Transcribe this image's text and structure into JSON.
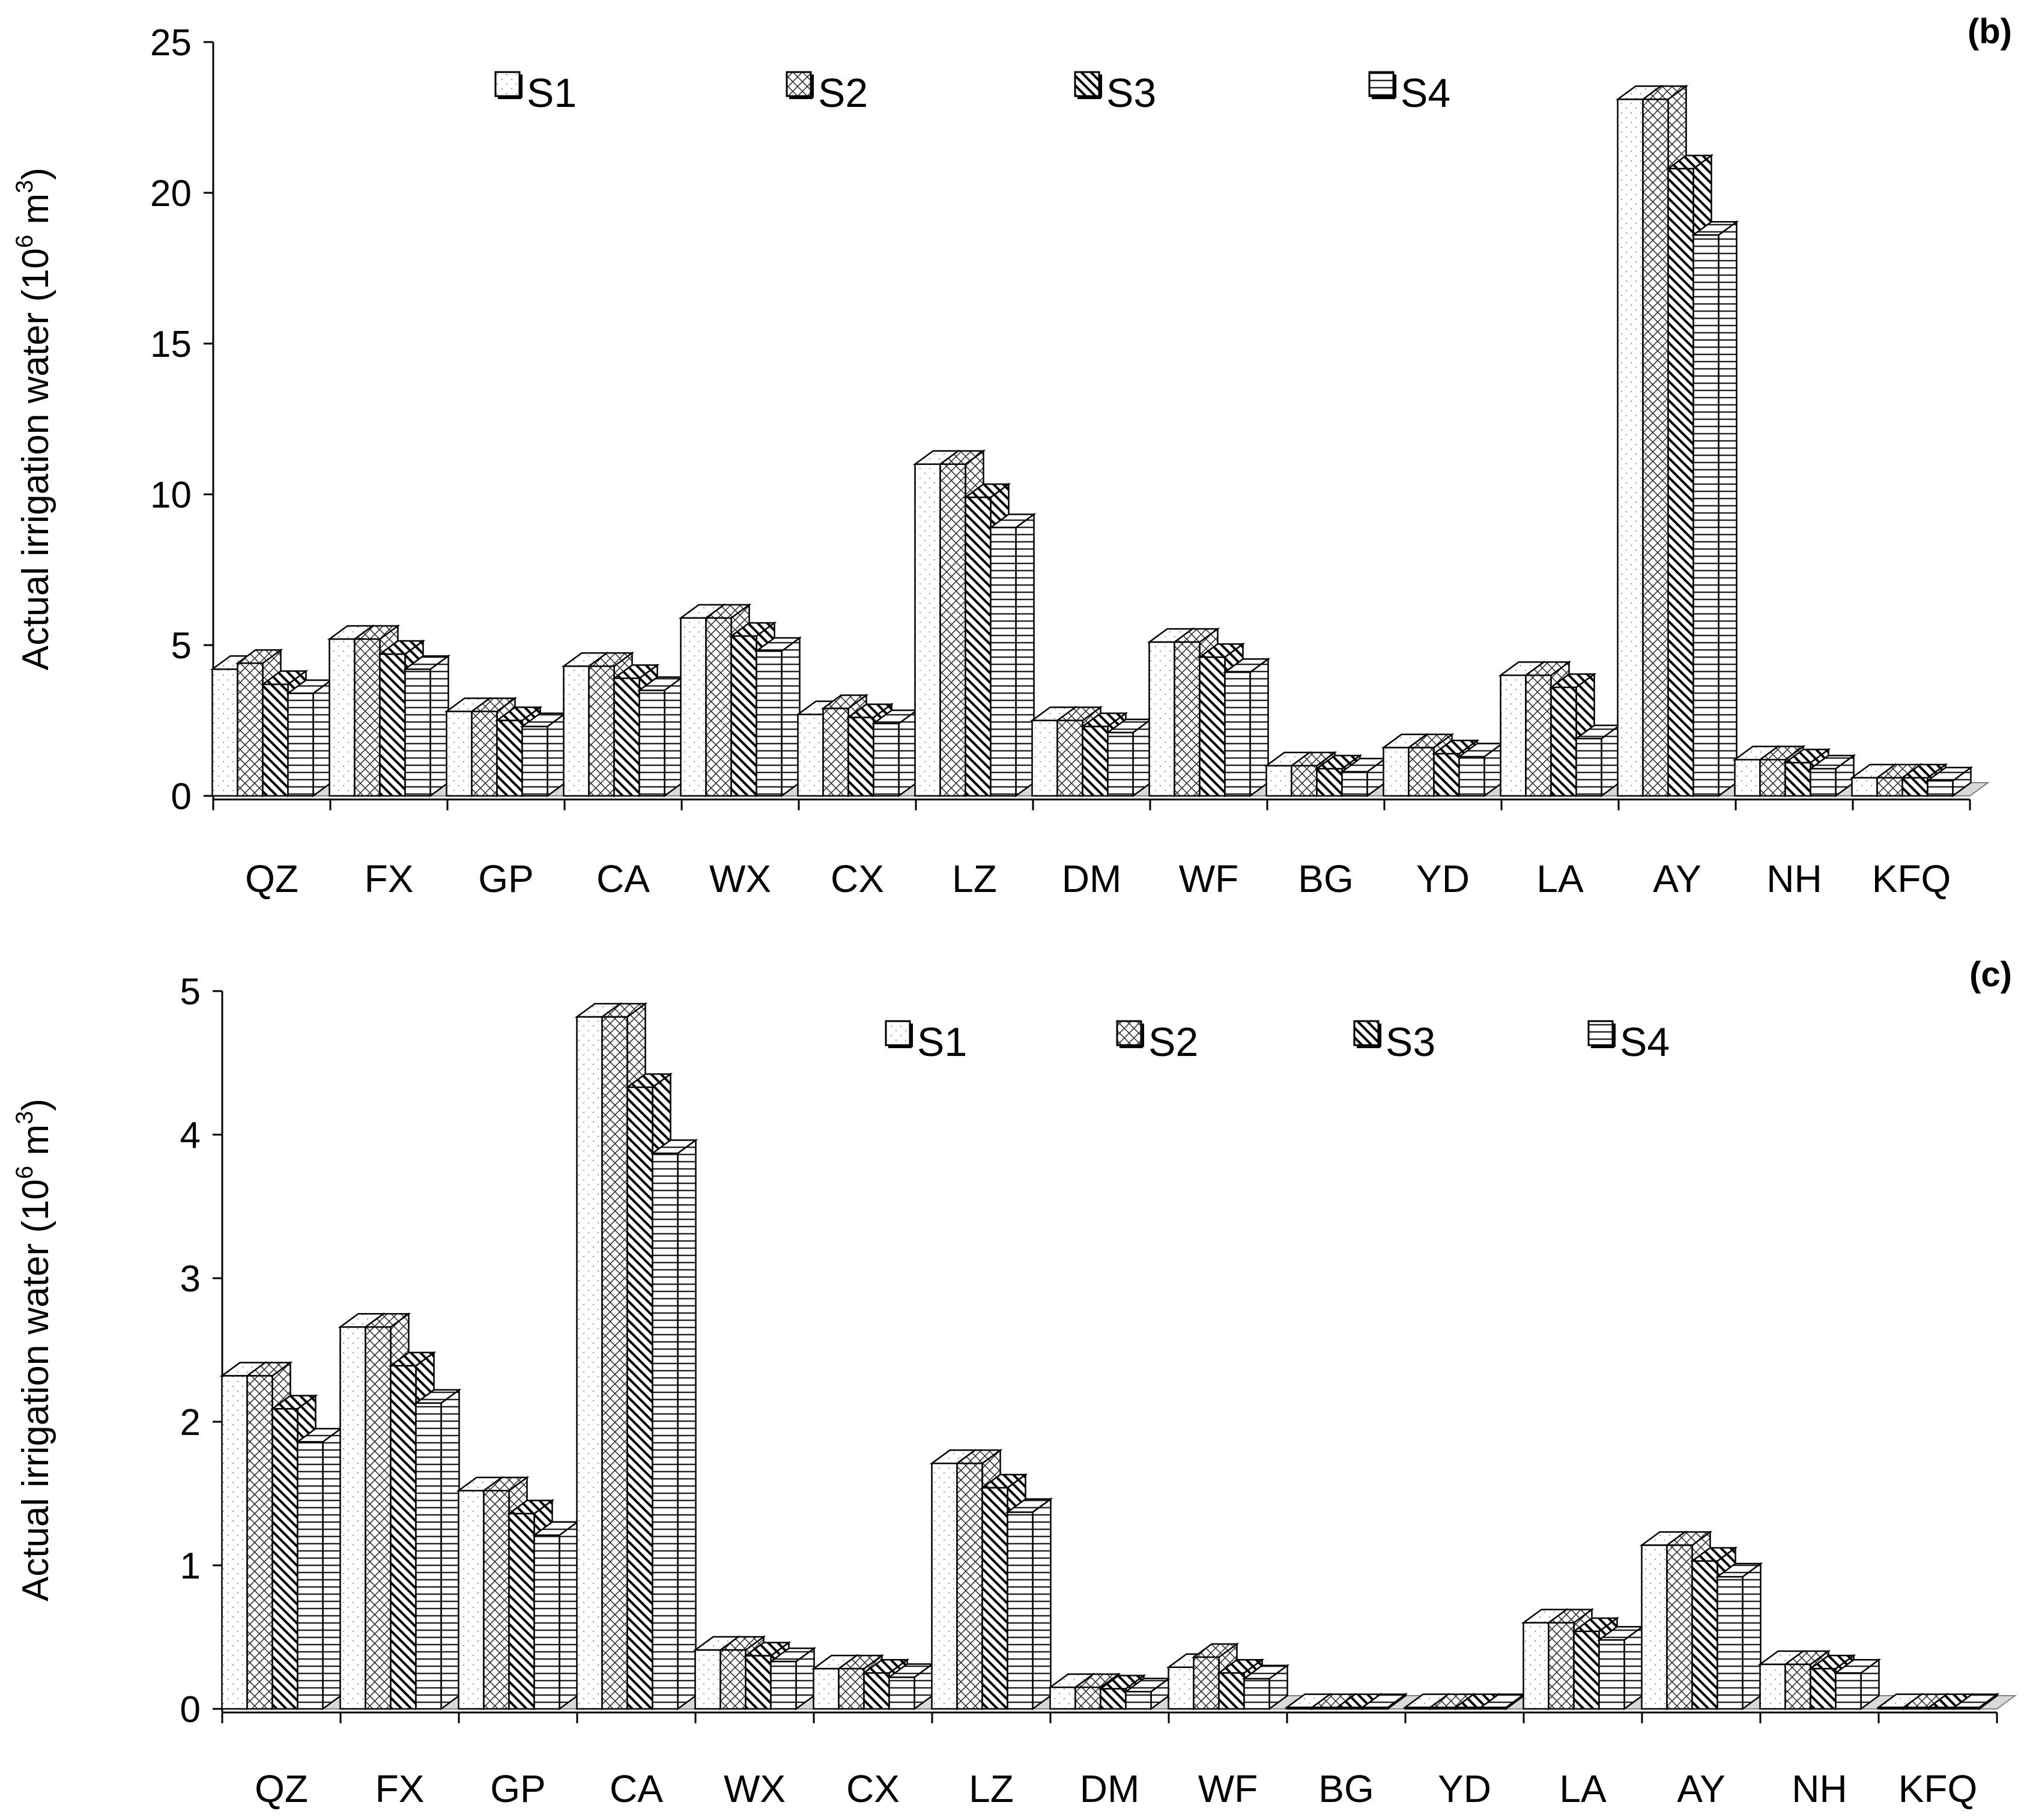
{
  "chart_data": [
    {
      "type": "bar",
      "panel_label": "(b)",
      "ylabel": "Actual irrigation water (10",
      "ylabel_sup": "6",
      "ylabel_unit": " m",
      "ylabel_unit_sup": "3",
      "ylabel_close": ")",
      "ylim": [
        0,
        25
      ],
      "yticks": [
        "0",
        "5",
        "10",
        "15",
        "20",
        "25"
      ],
      "categories": [
        "QZ",
        "FX",
        "GP",
        "CA",
        "WX",
        "CX",
        "LZ",
        "DM",
        "WF",
        "BG",
        "YD",
        "LA",
        "AY",
        "NH",
        "KFQ"
      ],
      "legend": [
        "S1",
        "S2",
        "S3",
        "S4"
      ],
      "series": [
        {
          "name": "S1",
          "values": [
            4.2,
            5.2,
            2.8,
            4.3,
            5.9,
            2.7,
            11.0,
            2.5,
            5.1,
            1.0,
            1.6,
            4.0,
            23.1,
            1.2,
            0.6
          ]
        },
        {
          "name": "S2",
          "values": [
            4.4,
            5.2,
            2.8,
            4.3,
            5.9,
            2.9,
            11.0,
            2.5,
            5.1,
            1.0,
            1.6,
            4.0,
            23.1,
            1.2,
            0.6
          ]
        },
        {
          "name": "S3",
          "values": [
            3.7,
            4.7,
            2.5,
            3.9,
            5.3,
            2.6,
            9.9,
            2.3,
            4.6,
            0.9,
            1.4,
            3.6,
            20.8,
            1.1,
            0.6
          ]
        },
        {
          "name": "S4",
          "values": [
            3.4,
            4.2,
            2.3,
            3.5,
            4.8,
            2.4,
            8.9,
            2.1,
            4.1,
            0.8,
            1.3,
            1.9,
            18.6,
            0.9,
            0.5
          ]
        }
      ]
    },
    {
      "type": "bar",
      "panel_label": "(c)",
      "ylabel": "Actual irrigation water (10",
      "ylabel_sup": "6",
      "ylabel_unit": " m",
      "ylabel_unit_sup": "3",
      "ylabel_close": ")",
      "ylim": [
        0,
        5
      ],
      "yticks": [
        "0",
        "1",
        "2",
        "3",
        "4",
        "5"
      ],
      "categories": [
        "QZ",
        "FX",
        "GP",
        "CA",
        "WX",
        "CX",
        "LZ",
        "DM",
        "WF",
        "BG",
        "YD",
        "LA",
        "AY",
        "NH",
        "KFQ"
      ],
      "legend": [
        "S1",
        "S2",
        "S3",
        "S4"
      ],
      "series": [
        {
          "name": "S1",
          "values": [
            2.32,
            2.66,
            1.52,
            4.82,
            0.41,
            0.28,
            1.71,
            0.15,
            0.29,
            0.01,
            0.01,
            0.6,
            1.14,
            0.31,
            0.01
          ]
        },
        {
          "name": "S2",
          "values": [
            2.32,
            2.66,
            1.52,
            4.82,
            0.41,
            0.28,
            1.71,
            0.15,
            0.36,
            0.01,
            0.01,
            0.6,
            1.14,
            0.31,
            0.01
          ]
        },
        {
          "name": "S3",
          "values": [
            2.09,
            2.39,
            1.36,
            4.33,
            0.37,
            0.25,
            1.54,
            0.14,
            0.25,
            0.01,
            0.01,
            0.54,
            1.03,
            0.28,
            0.01
          ]
        },
        {
          "name": "S4",
          "values": [
            1.86,
            2.13,
            1.21,
            3.87,
            0.33,
            0.22,
            1.37,
            0.12,
            0.21,
            0.01,
            0.01,
            0.48,
            0.92,
            0.25,
            0.01
          ]
        }
      ]
    }
  ]
}
